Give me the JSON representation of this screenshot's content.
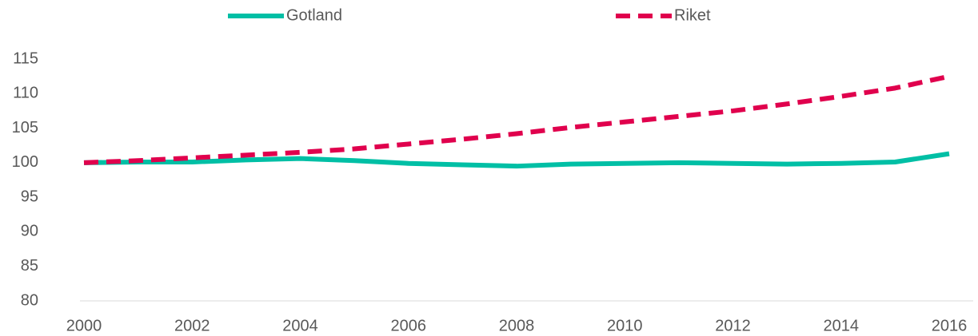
{
  "chart_data": {
    "type": "line",
    "x": [
      2000,
      2001,
      2002,
      2003,
      2004,
      2005,
      2006,
      2007,
      2008,
      2009,
      2010,
      2011,
      2012,
      2013,
      2014,
      2015,
      2016
    ],
    "series": [
      {
        "name": "Gotland",
        "color": "#00bfa5",
        "dashed": false,
        "values": [
          100,
          100.1,
          100.1,
          100.4,
          100.6,
          100.3,
          99.9,
          99.7,
          99.5,
          99.8,
          99.9,
          100.0,
          99.9,
          99.8,
          99.9,
          100.1,
          101.3
        ]
      },
      {
        "name": "Riket",
        "color": "#e0004d",
        "dashed": true,
        "values": [
          100,
          100.3,
          100.7,
          101.1,
          101.5,
          102.0,
          102.7,
          103.4,
          104.2,
          105.1,
          105.9,
          106.7,
          107.5,
          108.5,
          109.6,
          110.8,
          112.5
        ]
      }
    ],
    "xlim": [
      2000,
      2016
    ],
    "xticks": [
      2000,
      2002,
      2004,
      2006,
      2008,
      2010,
      2012,
      2014,
      2016
    ],
    "ylim": [
      80,
      115
    ],
    "yticks": [
      80,
      85,
      90,
      95,
      100,
      105,
      110,
      115
    ],
    "grid": false,
    "legend": "top"
  }
}
